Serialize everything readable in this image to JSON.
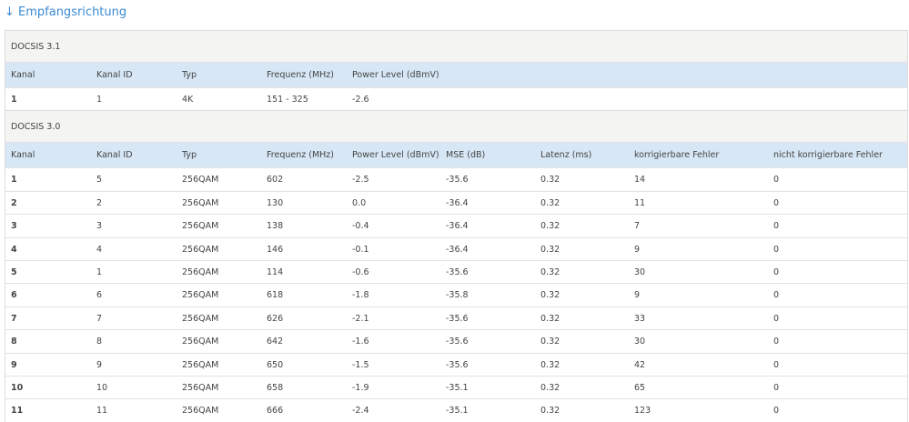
{
  "title": "↓ Empfangsrichtung",
  "sections": [
    {
      "name": "DOCSIS 3.1",
      "headers": [
        "Kanal",
        "Kanal ID",
        "Typ",
        "Frequenz (MHz)",
        "Power Level (dBmV)"
      ],
      "rows": [
        [
          "1",
          "1",
          "4K",
          "151 - 325",
          "-2.6"
        ]
      ]
    },
    {
      "name": "DOCSIS 3.0",
      "headers": [
        "Kanal",
        "Kanal ID",
        "Typ",
        "Frequenz (MHz)",
        "Power Level (dBmV)",
        "MSE (dB)",
        "Latenz (ms)",
        "korrigierbare Fehler",
        "nicht korrigierbare Fehler"
      ],
      "rows": [
        [
          "1",
          "5",
          "256QAM",
          "602",
          "-2.5",
          "-35.6",
          "0.32",
          "14",
          "0"
        ],
        [
          "2",
          "2",
          "256QAM",
          "130",
          "0.0",
          "-36.4",
          "0.32",
          "11",
          "0"
        ],
        [
          "3",
          "3",
          "256QAM",
          "138",
          "-0.4",
          "-36.4",
          "0.32",
          "7",
          "0"
        ],
        [
          "4",
          "4",
          "256QAM",
          "146",
          "-0.1",
          "-36.4",
          "0.32",
          "9",
          "0"
        ],
        [
          "5",
          "1",
          "256QAM",
          "114",
          "-0.6",
          "-35.6",
          "0.32",
          "30",
          "0"
        ],
        [
          "6",
          "6",
          "256QAM",
          "618",
          "-1.8",
          "-35.8",
          "0.32",
          "9",
          "0"
        ],
        [
          "7",
          "7",
          "256QAM",
          "626",
          "-2.1",
          "-35.6",
          "0.32",
          "33",
          "0"
        ],
        [
          "8",
          "8",
          "256QAM",
          "642",
          "-1.6",
          "-35.6",
          "0.32",
          "30",
          "0"
        ],
        [
          "9",
          "9",
          "256QAM",
          "650",
          "-1.5",
          "-35.6",
          "0.32",
          "42",
          "0"
        ],
        [
          "10",
          "10",
          "256QAM",
          "658",
          "-1.9",
          "-35.1",
          "0.32",
          "65",
          "0"
        ],
        [
          "11",
          "11",
          "256QAM",
          "666",
          "-2.4",
          "-35.1",
          "0.32",
          "123",
          "0"
        ]
      ]
    }
  ]
}
